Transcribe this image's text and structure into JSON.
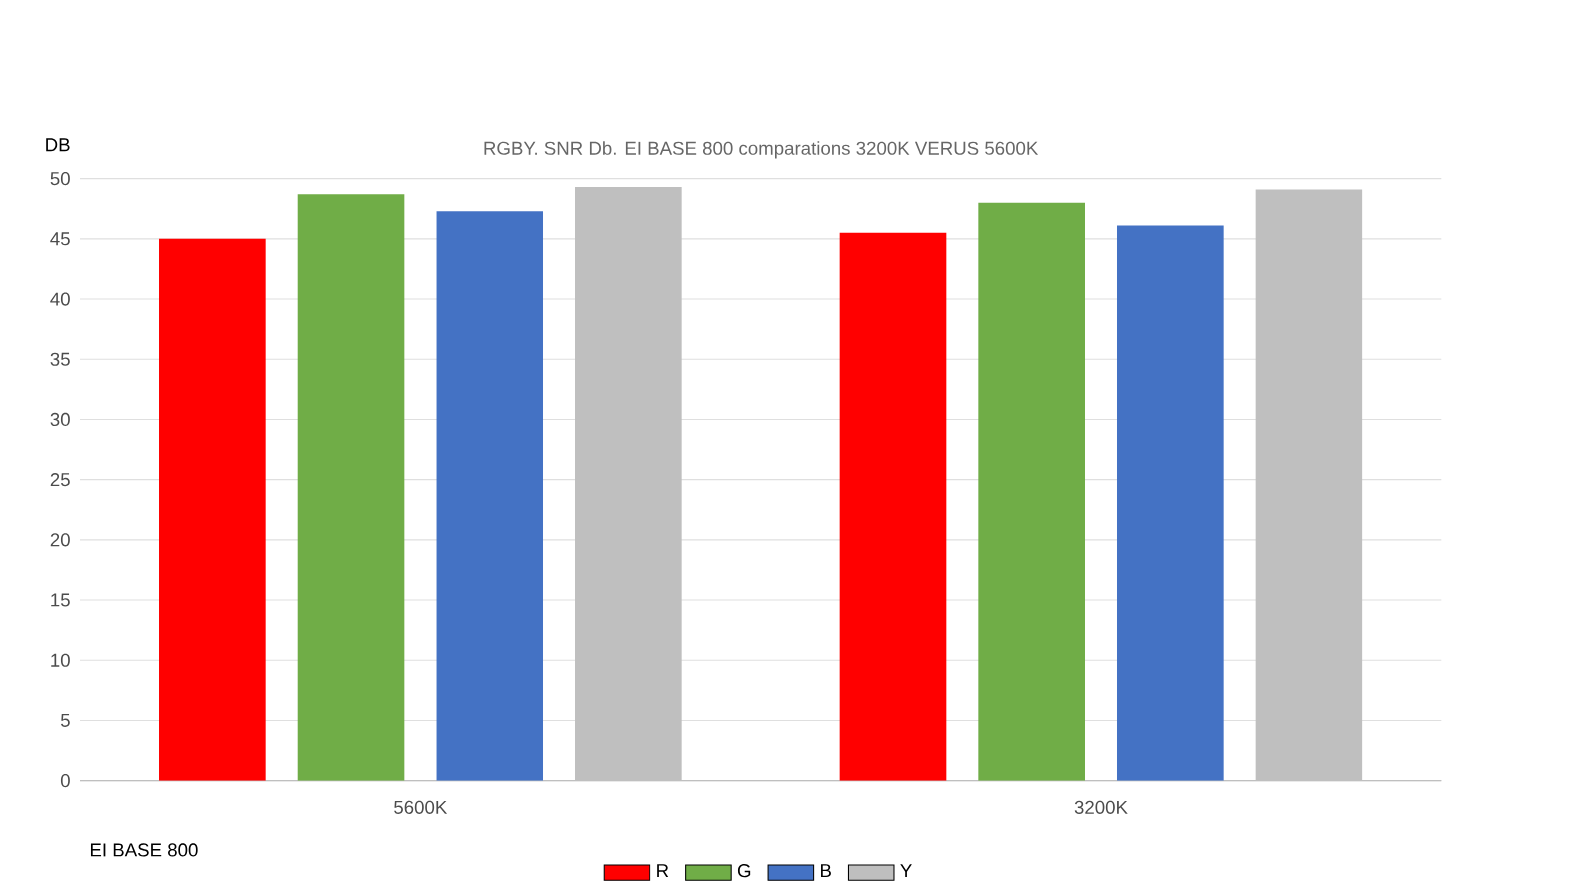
{
  "chart_data": {
    "type": "bar",
    "title": "RGBY. SNR Db. EI BASE 800 comparations 3200K VERUS 5600K",
    "ylabel": "DB",
    "categories": [
      "5600K",
      "3200K"
    ],
    "series": [
      {
        "name": "R",
        "color": "#ff0000",
        "values": [
          45.0,
          45.5
        ]
      },
      {
        "name": "G",
        "color": "#70ad47",
        "values": [
          48.7,
          48.0
        ]
      },
      {
        "name": "B",
        "color": "#4472c4",
        "values": [
          47.3,
          46.1
        ]
      },
      {
        "name": "Y",
        "color": "#bfbfbf",
        "values": [
          49.3,
          49.1
        ]
      }
    ],
    "ylim": [
      0,
      50
    ],
    "yticks": [
      0,
      5,
      10,
      15,
      20,
      25,
      30,
      35,
      40,
      45,
      50
    ],
    "grid": "y",
    "legend": "bottom",
    "annotations": [
      "EI BASE 800"
    ]
  }
}
